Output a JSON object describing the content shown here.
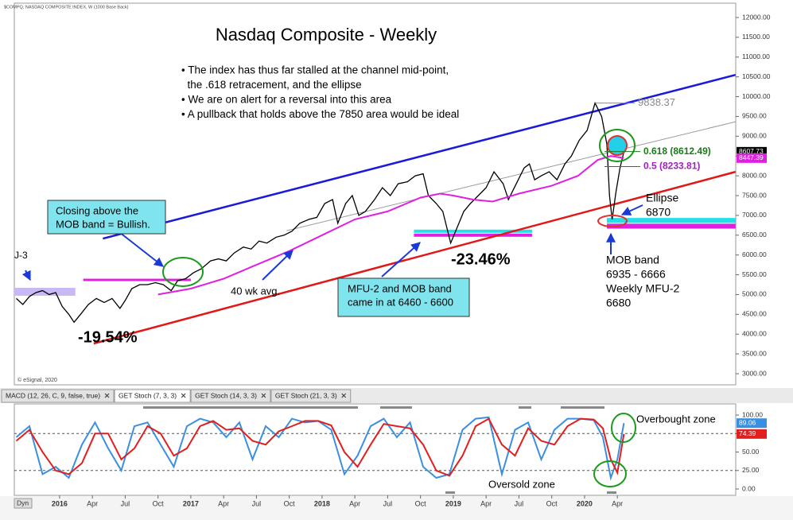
{
  "chart_data": [
    {
      "type": "line",
      "header": "$COMPQ, NASDAQ COMPOSITE INDEX, W (1000 Base Back)",
      "title": "Nasdaq Composite - Weekly",
      "notes": [
        "• The index has thus far stalled at the channel mid-point,",
        "  the .618 retracement, and the ellipse",
        "• We are on alert for a reversal into this area",
        "• A pullback that holds above the 7850 area would be ideal"
      ],
      "source": "© eSignal, 2020",
      "xlim": [
        2015.655,
        2021.152
      ],
      "ylim": [
        3000,
        12000
      ],
      "yticks": [
        {
          "value": 3000,
          "label": "3000.00"
        },
        {
          "value": 3500,
          "label": "3500.00"
        },
        {
          "value": 4000,
          "label": "4000.00"
        },
        {
          "value": 4500,
          "label": "4500.00"
        },
        {
          "value": 5000,
          "label": "5000.00"
        },
        {
          "value": 5500,
          "label": "5500.00"
        },
        {
          "value": 6000,
          "label": "6000.00"
        },
        {
          "value": 6500,
          "label": "6500.00"
        },
        {
          "value": 7000,
          "label": "7000.00"
        },
        {
          "value": 7500,
          "label": "7500.00"
        },
        {
          "value": 8000,
          "label": "8000.00"
        },
        {
          "value": 8500,
          "label": "8500.00"
        },
        {
          "value": 9000,
          "label": "9000.00"
        },
        {
          "value": 9500,
          "label": "9500.00"
        },
        {
          "value": 10000,
          "label": "10000.00"
        },
        {
          "value": 10500,
          "label": "10500.00"
        },
        {
          "value": 11000,
          "label": "11000.00"
        },
        {
          "value": 11500,
          "label": "11500.00"
        },
        {
          "value": 12000,
          "label": "12000.00"
        }
      ],
      "series": [
        {
          "color": "#000000",
          "last_label": 8607.73,
          "x": [
            2015.67,
            2015.72,
            2015.77,
            2015.82,
            2015.87,
            2015.92,
            2015.97,
            2016.02,
            2016.07,
            2016.11,
            2016.16,
            2016.22,
            2016.28,
            2016.34,
            2016.4,
            2016.46,
            2016.5,
            2016.55,
            2016.61,
            2016.67,
            2016.73,
            2016.79,
            2016.85,
            2016.9,
            2016.96,
            2017.02,
            2017.08,
            2017.15,
            2017.21,
            2017.27,
            2017.33,
            2017.4,
            2017.46,
            2017.52,
            2017.58,
            2017.65,
            2017.71,
            2017.77,
            2017.83,
            2017.9,
            2017.96,
            2018.02,
            2018.08,
            2018.12,
            2018.18,
            2018.23,
            2018.28,
            2018.33,
            2018.4,
            2018.46,
            2018.52,
            2018.58,
            2018.65,
            2018.71,
            2018.77,
            2018.81,
            2018.87,
            2018.92,
            2018.98,
            2019.03,
            2019.08,
            2019.13,
            2019.19,
            2019.25,
            2019.31,
            2019.38,
            2019.42,
            2019.48,
            2019.54,
            2019.58,
            2019.62,
            2019.67,
            2019.73,
            2019.79,
            2019.85,
            2019.9,
            2019.96,
            2020.02,
            2020.08,
            2020.13,
            2020.17,
            2020.19,
            2020.21,
            2020.24,
            2020.27,
            2020.3
          ],
          "values": [
            4900,
            4750,
            4950,
            5050,
            5100,
            5000,
            5050,
            4700,
            4500,
            4300,
            4500,
            4750,
            4900,
            4800,
            4900,
            4650,
            4850,
            5150,
            5250,
            5250,
            5300,
            5250,
            5100,
            5350,
            5400,
            5550,
            5650,
            5850,
            5900,
            5850,
            6050,
            6200,
            6150,
            6350,
            6300,
            6450,
            6500,
            6600,
            6800,
            6900,
            6950,
            7300,
            7400,
            6800,
            7300,
            7500,
            7000,
            7100,
            7400,
            7700,
            7500,
            7800,
            7850,
            8000,
            8050,
            7500,
            7300,
            7100,
            6300,
            6700,
            7100,
            7300,
            7500,
            7700,
            8100,
            7800,
            7400,
            7800,
            8200,
            8300,
            7900,
            8000,
            8100,
            7900,
            8300,
            8500,
            8900,
            9150,
            9838.37,
            9500,
            8800,
            7500,
            6900,
            7600,
            8200,
            8607.73
          ]
        },
        {
          "color": "#e020e0",
          "last_label": 8447.39,
          "x": [
            2016.75,
            2017.0,
            2017.25,
            2017.5,
            2017.75,
            2018.0,
            2018.25,
            2018.5,
            2018.75,
            2018.9,
            2019.0,
            2019.15,
            2019.3,
            2019.5,
            2019.75,
            2019.95,
            2020.1,
            2020.2,
            2020.3
          ],
          "values": [
            5000,
            5150,
            5400,
            5750,
            6100,
            6500,
            6900,
            7100,
            7450,
            7550,
            7500,
            7400,
            7350,
            7550,
            7750,
            8000,
            8400,
            8500,
            8447.39
          ]
        }
      ],
      "lines": [
        {
          "color": "#1a1ad8",
          "x": [
            2016.33,
            2021.15
          ],
          "values": [
            6414,
            10550
          ]
        },
        {
          "color": "#e01818",
          "x": [
            2016.26,
            2021.15
          ],
          "values": [
            3763,
            8100
          ]
        },
        {
          "color": "#9a9a9a",
          "x": [
            2017.73,
            2021.15
          ],
          "values": [
            6614,
            9365
          ]
        }
      ],
      "bands": [
        {
          "color": "#c8b8f4",
          "x": [
            2015.655,
            2016.12
          ],
          "y": [
            4970,
            5170
          ]
        },
        {
          "color": "#e020e0",
          "x": [
            2016.18,
            2017.0
          ],
          "y": [
            5340,
            5400
          ]
        },
        {
          "color": "#22e0e8",
          "x": [
            2018.7,
            2019.6
          ],
          "y": [
            6560,
            6640
          ]
        },
        {
          "color": "#e020e0",
          "x": [
            2018.7,
            2019.6
          ],
          "y": [
            6460,
            6540
          ]
        },
        {
          "color": "#22e0e8",
          "x": [
            2020.17,
            2021.15
          ],
          "y": [
            6810,
            6935
          ]
        },
        {
          "color": "#e020e0",
          "x": [
            2020.17,
            2021.15
          ],
          "y": [
            6666,
            6790
          ]
        }
      ],
      "levels": [
        {
          "label": "9838.37",
          "value": 9838.37,
          "color": "#8a8a8a"
        },
        {
          "label": "0.618 (8612.49)",
          "value": 8612.49,
          "color": "#1a7a1a"
        },
        {
          "label": "0.5 (8233.81)",
          "value": 8233.81,
          "color": "#a020c0"
        }
      ],
      "annotations": [
        {
          "lines": [
            "J-3"
          ]
        },
        {
          "lines": [
            "-19.54%"
          ]
        },
        {
          "lines": [
            "-23.46%"
          ]
        },
        {
          "lines": [
            "40 wk avg."
          ]
        },
        {
          "lines": [
            "Closing above the",
            "MOB band = Bullish."
          ]
        },
        {
          "lines": [
            "MFU-2 and MOB band",
            "came in at 6460 - 6600"
          ]
        },
        {
          "lines": [
            "Ellipse",
            "6870"
          ]
        },
        {
          "lines": [
            "MOB band",
            "6935 - 6666",
            "Weekly MFU-2",
            "6680"
          ]
        }
      ]
    },
    {
      "type": "line",
      "tabs": [
        "MACD (12, 26, C, 9, false, true)",
        "GET Stoch (7, 3, 3)",
        "GET Stoch (14, 3, 3)",
        "GET Stoch (21, 3, 3)"
      ],
      "corner": "Dyn",
      "xlim": [
        2015.655,
        2021.152
      ],
      "xticks": [
        {
          "value": 2016,
          "label": "2016"
        },
        {
          "value": 2016.25,
          "label": "Apr"
        },
        {
          "value": 2016.5,
          "label": "Jul"
        },
        {
          "value": 2016.75,
          "label": "Oct"
        },
        {
          "value": 2017,
          "label": "2017"
        },
        {
          "value": 2017.25,
          "label": "Apr"
        },
        {
          "value": 2017.5,
          "label": "Jul"
        },
        {
          "value": 2017.75,
          "label": "Oct"
        },
        {
          "value": 2018,
          "label": "2018"
        },
        {
          "value": 2018.25,
          "label": "Apr"
        },
        {
          "value": 2018.5,
          "label": "Jul"
        },
        {
          "value": 2018.75,
          "label": "Oct"
        },
        {
          "value": 2019,
          "label": "2019"
        },
        {
          "value": 2019.25,
          "label": "Apr"
        },
        {
          "value": 2019.5,
          "label": "Jul"
        },
        {
          "value": 2019.75,
          "label": "Oct"
        },
        {
          "value": 2020,
          "label": "2020"
        },
        {
          "value": 2020.25,
          "label": "Apr"
        }
      ],
      "ylim": [
        0,
        100
      ],
      "yticks": [
        {
          "value": 0,
          "label": "0.00"
        },
        {
          "value": 25,
          "label": "25.00"
        },
        {
          "value": 50,
          "label": "50.00"
        },
        {
          "value": 75,
          "label": "75.00"
        },
        {
          "value": 100,
          "label": "100.00"
        }
      ],
      "dashed_levels": [
        25,
        75
      ],
      "series": [
        {
          "color": "#3a8fe0",
          "last_label": 89.06,
          "x": [
            2015.67,
            2015.77,
            2015.87,
            2015.97,
            2016.07,
            2016.17,
            2016.27,
            2016.37,
            2016.47,
            2016.57,
            2016.67,
            2016.77,
            2016.87,
            2016.97,
            2017.07,
            2017.17,
            2017.27,
            2017.37,
            2017.47,
            2017.57,
            2017.67,
            2017.77,
            2017.87,
            2017.97,
            2018.07,
            2018.17,
            2018.27,
            2018.37,
            2018.47,
            2018.57,
            2018.67,
            2018.77,
            2018.87,
            2018.97,
            2019.07,
            2019.17,
            2019.27,
            2019.37,
            2019.47,
            2019.57,
            2019.67,
            2019.77,
            2019.87,
            2019.97,
            2020.07,
            2020.14,
            2020.2,
            2020.25,
            2020.3
          ],
          "values": [
            70,
            85,
            20,
            30,
            15,
            60,
            90,
            55,
            25,
            85,
            90,
            60,
            30,
            85,
            95,
            90,
            70,
            90,
            40,
            85,
            70,
            95,
            90,
            92,
            80,
            20,
            45,
            85,
            95,
            70,
            90,
            30,
            15,
            20,
            80,
            95,
            97,
            20,
            80,
            90,
            40,
            80,
            95,
            95,
            93,
            70,
            15,
            40,
            89.06
          ]
        },
        {
          "color": "#e02020",
          "last_label": 74.39,
          "x": [
            2015.67,
            2015.77,
            2015.87,
            2015.97,
            2016.07,
            2016.17,
            2016.27,
            2016.37,
            2016.47,
            2016.57,
            2016.67,
            2016.77,
            2016.87,
            2016.97,
            2017.07,
            2017.17,
            2017.27,
            2017.37,
            2017.47,
            2017.57,
            2017.67,
            2017.77,
            2017.87,
            2017.97,
            2018.07,
            2018.17,
            2018.27,
            2018.37,
            2018.47,
            2018.57,
            2018.67,
            2018.77,
            2018.87,
            2018.97,
            2019.07,
            2019.17,
            2019.27,
            2019.37,
            2019.47,
            2019.57,
            2019.67,
            2019.77,
            2019.87,
            2019.97,
            2020.07,
            2020.14,
            2020.2,
            2020.25,
            2020.3
          ],
          "values": [
            65,
            80,
            50,
            25,
            20,
            35,
            75,
            75,
            40,
            55,
            85,
            75,
            45,
            55,
            85,
            92,
            80,
            82,
            65,
            60,
            78,
            85,
            92,
            92,
            86,
            50,
            30,
            60,
            88,
            85,
            82,
            60,
            25,
            18,
            45,
            85,
            95,
            60,
            45,
            82,
            65,
            60,
            85,
            95,
            94,
            82,
            40,
            22,
            74.39
          ]
        }
      ],
      "annotations": [
        {
          "lines": [
            "Overbought zone"
          ]
        },
        {
          "lines": [
            "Oversold zone"
          ]
        }
      ]
    }
  ]
}
